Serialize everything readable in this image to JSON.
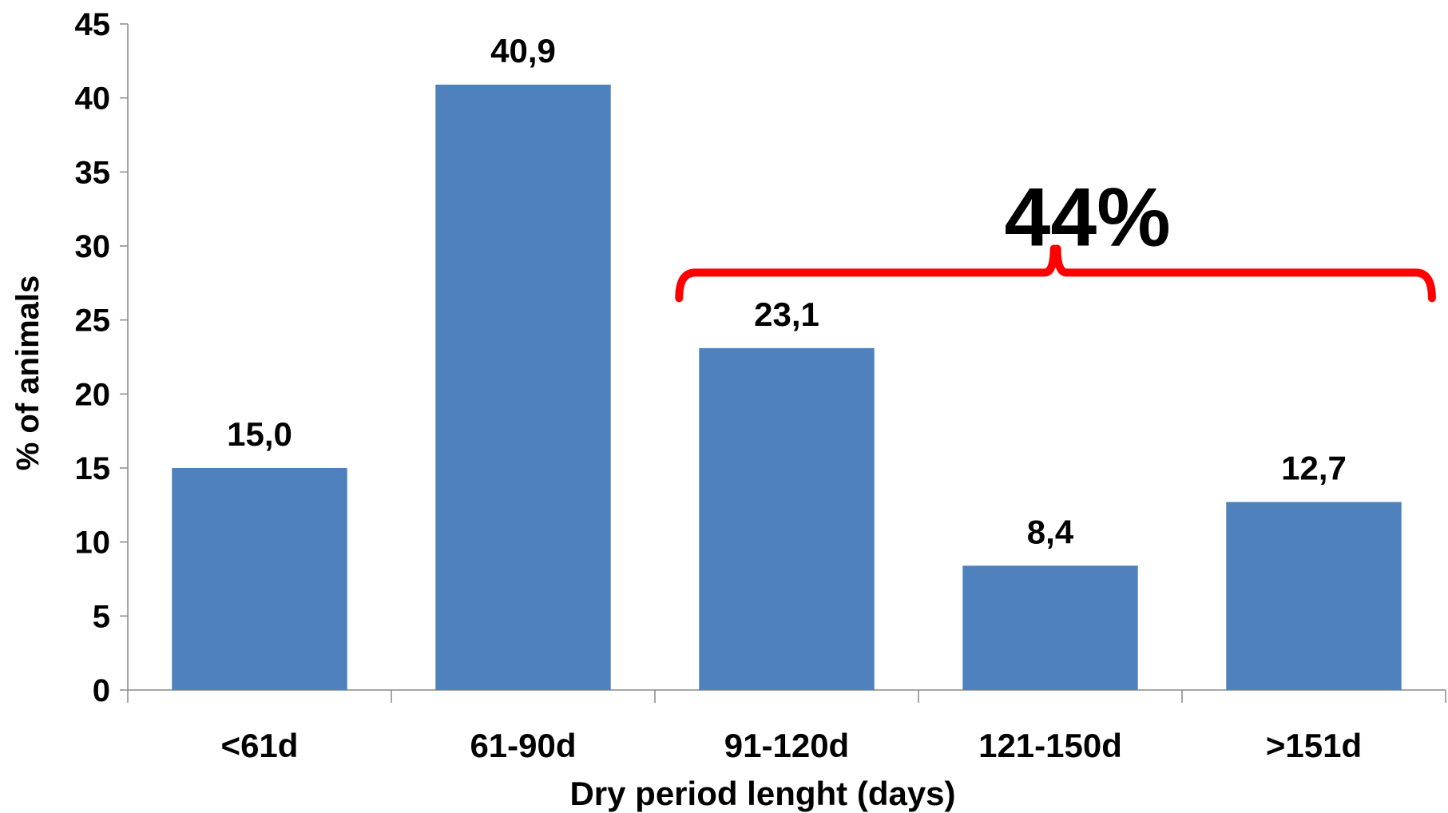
{
  "chart_data": {
    "type": "bar",
    "categories": [
      "<61d",
      "61-90d",
      "91-120d",
      "121-150d",
      ">151d"
    ],
    "values": [
      15.0,
      40.9,
      23.1,
      8.4,
      12.7
    ],
    "data_labels": [
      "15,0",
      "40,9",
      "23,1",
      "8,4",
      "12,7"
    ],
    "xlabel": "Dry period lenght (days)",
    "ylabel": "% of animals",
    "ylim": [
      0,
      45
    ],
    "yticks": [
      0,
      5,
      10,
      15,
      20,
      25,
      30,
      35,
      40,
      45
    ],
    "grid": false,
    "legend": "none",
    "bar_color": "#4F81BD",
    "annotation": {
      "text": "44%",
      "spans_categories": [
        "91-120d",
        ">151d"
      ],
      "color": "#FF0000"
    }
  }
}
